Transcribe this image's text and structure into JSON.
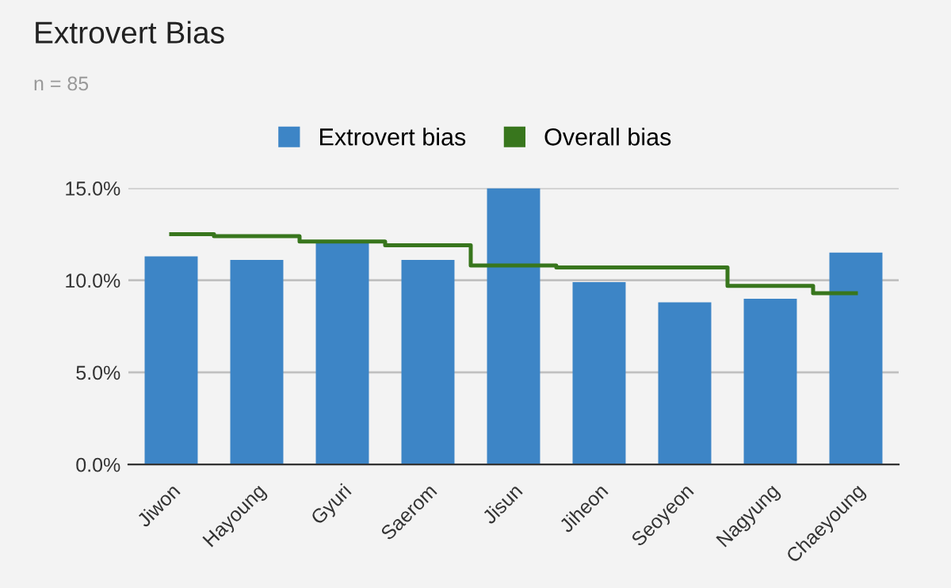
{
  "chart_data": {
    "type": "bar",
    "title": "Extrovert Bias",
    "subtitle": "n = 85",
    "categories": [
      "Jiwon",
      "Hayoung",
      "Gyuri",
      "Saerom",
      "Jisun",
      "Jiheon",
      "Seoyeon",
      "Nagyung",
      "Chaeyoung"
    ],
    "series": [
      {
        "name": "Extrovert bias",
        "color": "#3d85c6",
        "values": [
          11.3,
          11.1,
          12.1,
          11.1,
          15.0,
          9.9,
          8.8,
          9.0,
          11.5
        ]
      },
      {
        "name": "Overall bias",
        "type": "step",
        "color": "#38761d",
        "values": [
          12.5,
          12.4,
          12.1,
          11.9,
          10.8,
          10.7,
          10.7,
          9.7,
          9.3
        ]
      }
    ],
    "ylim": [
      0,
      15
    ],
    "yticks": [
      {
        "value": 0,
        "label": "0.0%"
      },
      {
        "value": 5,
        "label": "5.0%"
      },
      {
        "value": 10,
        "label": "10.0%"
      },
      {
        "value": 15,
        "label": "15.0%"
      }
    ],
    "grid": "y",
    "legend": "top"
  }
}
